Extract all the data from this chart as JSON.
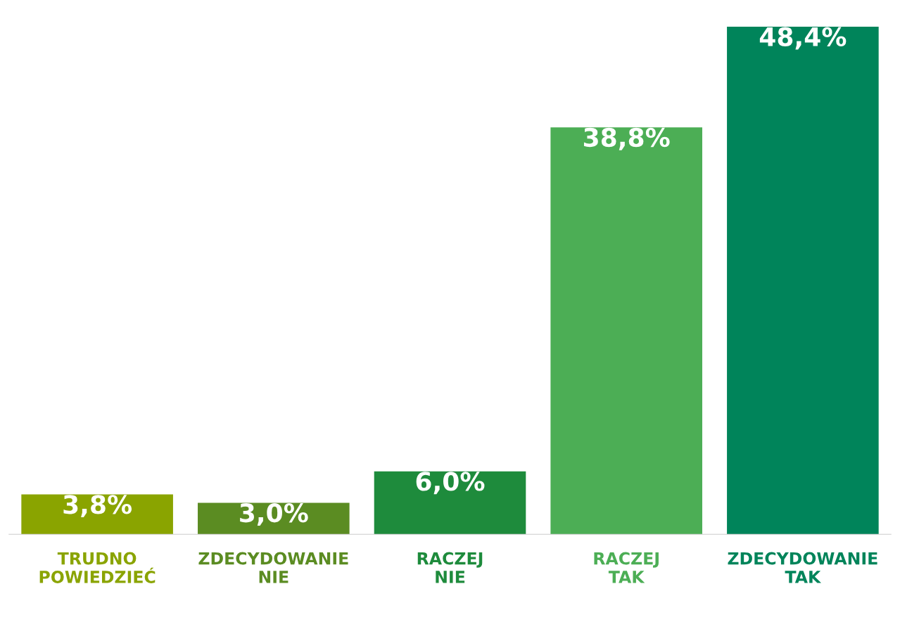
{
  "chart_data": {
    "type": "bar",
    "categories": [
      "TRUDNO\nPOWIEDZIEĆ",
      "ZDECYDOWANIE\nNIE",
      "RACZEJ\nNIE",
      "RACZEJ\nTAK",
      "ZDECYDOWANIE\nTAK"
    ],
    "values": [
      3.8,
      3.0,
      6.0,
      38.8,
      48.4
    ],
    "colors": [
      "#8aa400",
      "#5b8c22",
      "#1e8b3c",
      "#4cae55",
      "#00845a"
    ],
    "value_labels": [
      "3,8%",
      "3,0%",
      "6,0%",
      "38,8%",
      "48,4%"
    ],
    "tick_labels": "x",
    "grid": false,
    "legend": false
  }
}
